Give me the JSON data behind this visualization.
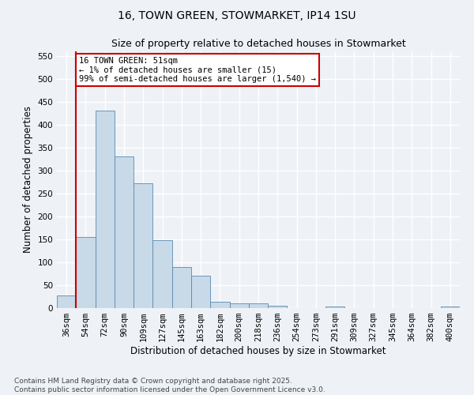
{
  "title_line1": "16, TOWN GREEN, STOWMARKET, IP14 1SU",
  "title_line2": "Size of property relative to detached houses in Stowmarket",
  "xlabel": "Distribution of detached houses by size in Stowmarket",
  "ylabel": "Number of detached properties",
  "categories": [
    "36sqm",
    "54sqm",
    "72sqm",
    "90sqm",
    "109sqm",
    "127sqm",
    "145sqm",
    "163sqm",
    "182sqm",
    "200sqm",
    "218sqm",
    "236sqm",
    "254sqm",
    "273sqm",
    "291sqm",
    "309sqm",
    "327sqm",
    "345sqm",
    "364sqm",
    "382sqm",
    "400sqm"
  ],
  "values": [
    27,
    155,
    430,
    330,
    273,
    148,
    89,
    71,
    13,
    10,
    10,
    5,
    0,
    0,
    4,
    0,
    0,
    0,
    0,
    0,
    4
  ],
  "bar_color": "#c8d9e8",
  "bar_edge_color": "#5a8ab0",
  "annotation_text": "16 TOWN GREEN: 51sqm\n← 1% of detached houses are smaller (15)\n99% of semi-detached houses are larger (1,540) →",
  "annotation_box_color": "#ffffff",
  "annotation_box_edge_color": "#cc0000",
  "vline_color": "#cc0000",
  "vline_x": 0.5,
  "ylim": [
    0,
    560
  ],
  "yticks": [
    0,
    50,
    100,
    150,
    200,
    250,
    300,
    350,
    400,
    450,
    500,
    550
  ],
  "background_color": "#eef2f7",
  "grid_color": "#ffffff",
  "footer": "Contains HM Land Registry data © Crown copyright and database right 2025.\nContains public sector information licensed under the Open Government Licence v3.0.",
  "title_fontsize": 10,
  "subtitle_fontsize": 9,
  "axis_label_fontsize": 8.5,
  "tick_fontsize": 7.5,
  "footer_fontsize": 6.5,
  "annot_fontsize": 7.5
}
